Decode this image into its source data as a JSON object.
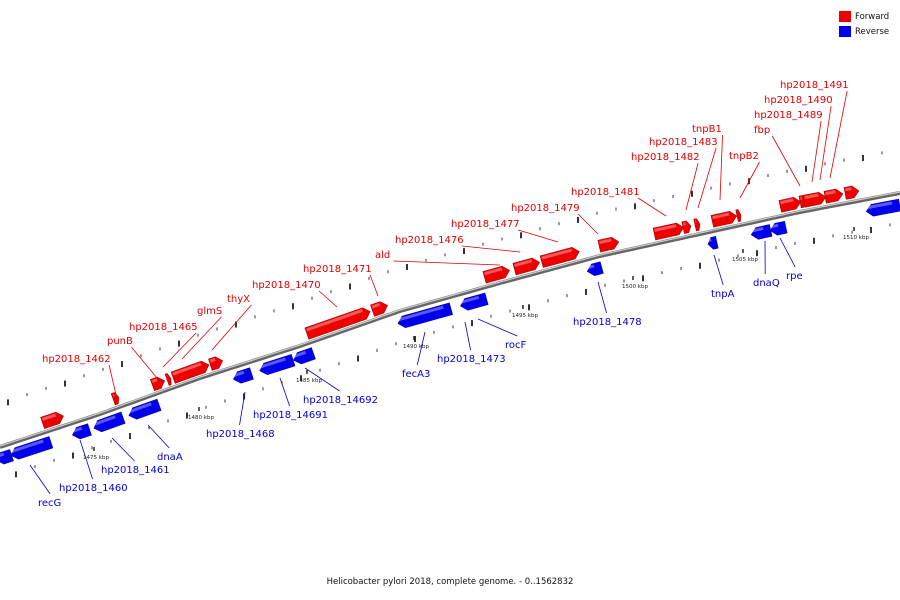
{
  "legend": {
    "forward_label": "Forward",
    "reverse_label": "Reverse",
    "forward_color": "#ee0000",
    "reverse_color": "#0000ee"
  },
  "caption": "Helicobacter pylori 2018, complete genome. - 0..1562832",
  "scale_labels": [
    "1475 kbp",
    "1480 kbp",
    "1485 kbp",
    "1490 kbp",
    "1495 kbp",
    "1500 kbp",
    "1505 kbp",
    "1510 kbp"
  ],
  "forward_genes": [
    "hp2018_1462",
    "punB",
    "hp2018_1465",
    "glmS",
    "thyX",
    "hp2018_1470",
    "hp2018_1471",
    "ald",
    "hp2018_1476",
    "hp2018_1477",
    "hp2018_1479",
    "hp2018_1481",
    "hp2018_1482",
    "hp2018_1483",
    "tnpB1",
    "tnpB2",
    "fbp",
    "hp2018_1489",
    "hp2018_1490",
    "hp2018_1491"
  ],
  "reverse_genes": [
    "recG",
    "hp2018_1460",
    "hp2018_1461",
    "dnaA",
    "hp2018_1468",
    "hp2018_14691",
    "hp2018_14692",
    "fecA3",
    "hp2018_1473",
    "rocF",
    "hp2018_1478",
    "tnpA",
    "dnaQ",
    "rpe"
  ]
}
